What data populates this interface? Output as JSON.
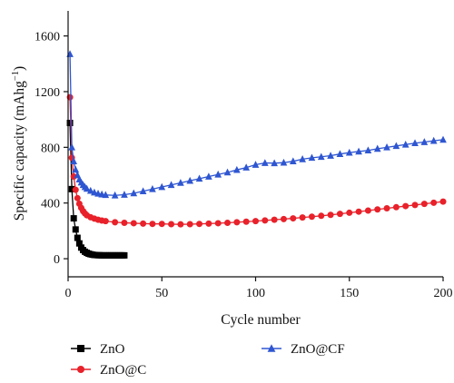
{
  "chart_data": {
    "type": "scatter",
    "xlabel": "Cycle number",
    "ylabel": "Specific capacity (mAhg",
    "ylabel_sup": "−1",
    "ylabel_close": ")",
    "xlim": [
      0,
      200
    ],
    "ylim": [
      -130,
      1780
    ],
    "x_ticks": [
      0,
      50,
      100,
      150,
      200
    ],
    "y_ticks": [
      0,
      400,
      800,
      1200,
      1600
    ],
    "grid": false,
    "legend_position": "bottom",
    "series": [
      {
        "name": "ZnO",
        "color": "#000000",
        "marker": "square",
        "points": [
          [
            1,
            975
          ],
          [
            2,
            500
          ],
          [
            3,
            290
          ],
          [
            4,
            210
          ],
          [
            5,
            150
          ],
          [
            6,
            110
          ],
          [
            7,
            80
          ],
          [
            8,
            62
          ],
          [
            9,
            50
          ],
          [
            10,
            42
          ],
          [
            11,
            36
          ],
          [
            12,
            32
          ],
          [
            13,
            29
          ],
          [
            14,
            27
          ],
          [
            15,
            26
          ],
          [
            16,
            25
          ],
          [
            17,
            25
          ],
          [
            18,
            24
          ],
          [
            19,
            24
          ],
          [
            20,
            24
          ],
          [
            21,
            24
          ],
          [
            22,
            24
          ],
          [
            23,
            24
          ],
          [
            24,
            24
          ],
          [
            25,
            24
          ],
          [
            26,
            24
          ],
          [
            27,
            24
          ],
          [
            28,
            24
          ],
          [
            29,
            24
          ],
          [
            30,
            24
          ]
        ]
      },
      {
        "name": "ZnO@C",
        "color": "#e8212a",
        "marker": "circle",
        "points": [
          [
            1,
            1160
          ],
          [
            2,
            725
          ],
          [
            3,
            590
          ],
          [
            4,
            495
          ],
          [
            5,
            435
          ],
          [
            6,
            395
          ],
          [
            7,
            365
          ],
          [
            8,
            342
          ],
          [
            9,
            325
          ],
          [
            10,
            312
          ],
          [
            12,
            298
          ],
          [
            14,
            288
          ],
          [
            16,
            280
          ],
          [
            18,
            274
          ],
          [
            20,
            270
          ],
          [
            25,
            262
          ],
          [
            30,
            258
          ],
          [
            35,
            255
          ],
          [
            40,
            252
          ],
          [
            45,
            250
          ],
          [
            50,
            250
          ],
          [
            55,
            248
          ],
          [
            60,
            247
          ],
          [
            65,
            248
          ],
          [
            70,
            250
          ],
          [
            75,
            252
          ],
          [
            80,
            255
          ],
          [
            85,
            258
          ],
          [
            90,
            262
          ],
          [
            95,
            266
          ],
          [
            100,
            270
          ],
          [
            105,
            275
          ],
          [
            110,
            280
          ],
          [
            115,
            285
          ],
          [
            120,
            290
          ],
          [
            125,
            296
          ],
          [
            130,
            302
          ],
          [
            135,
            308
          ],
          [
            140,
            315
          ],
          [
            145,
            322
          ],
          [
            150,
            330
          ],
          [
            155,
            338
          ],
          [
            160,
            346
          ],
          [
            165,
            354
          ],
          [
            170,
            362
          ],
          [
            175,
            370
          ],
          [
            180,
            378
          ],
          [
            185,
            386
          ],
          [
            190,
            394
          ],
          [
            195,
            402
          ],
          [
            200,
            410
          ]
        ]
      },
      {
        "name": "ZnO@CF",
        "color": "#2f56d1",
        "marker": "triangle",
        "points": [
          [
            1,
            1470
          ],
          [
            2,
            800
          ],
          [
            3,
            700
          ],
          [
            4,
            640
          ],
          [
            5,
            600
          ],
          [
            6,
            570
          ],
          [
            7,
            548
          ],
          [
            8,
            530
          ],
          [
            9,
            515
          ],
          [
            10,
            503
          ],
          [
            12,
            488
          ],
          [
            14,
            476
          ],
          [
            16,
            468
          ],
          [
            18,
            462
          ],
          [
            20,
            458
          ],
          [
            25,
            455
          ],
          [
            30,
            460
          ],
          [
            35,
            470
          ],
          [
            40,
            485
          ],
          [
            45,
            500
          ],
          [
            50,
            515
          ],
          [
            55,
            530
          ],
          [
            60,
            545
          ],
          [
            65,
            560
          ],
          [
            70,
            575
          ],
          [
            75,
            590
          ],
          [
            80,
            605
          ],
          [
            85,
            620
          ],
          [
            90,
            638
          ],
          [
            95,
            655
          ],
          [
            100,
            675
          ],
          [
            105,
            688
          ],
          [
            110,
            686
          ],
          [
            115,
            690
          ],
          [
            120,
            700
          ],
          [
            125,
            715
          ],
          [
            130,
            725
          ],
          [
            135,
            732
          ],
          [
            140,
            740
          ],
          [
            145,
            752
          ],
          [
            150,
            762
          ],
          [
            155,
            770
          ],
          [
            160,
            778
          ],
          [
            165,
            790
          ],
          [
            170,
            800
          ],
          [
            175,
            810
          ],
          [
            180,
            820
          ],
          [
            185,
            830
          ],
          [
            190,
            838
          ],
          [
            195,
            847
          ],
          [
            200,
            855
          ]
        ]
      }
    ]
  }
}
